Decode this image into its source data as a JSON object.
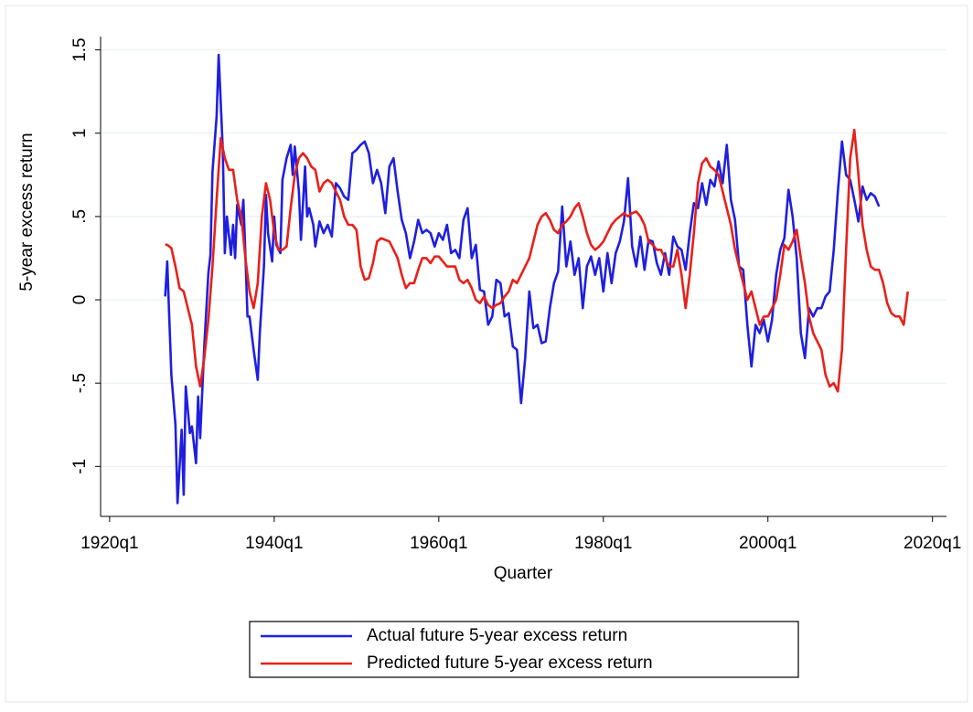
{
  "chart_data": {
    "type": "line",
    "x_label": "Quarter",
    "y_label": "5-year excess return",
    "xlim": [
      1918.9,
      2021.7
    ],
    "ylim": [
      -1.3,
      1.58
    ],
    "xticks": [
      {
        "value": 1920,
        "label": "1920q1"
      },
      {
        "value": 1940,
        "label": "1940q1"
      },
      {
        "value": 1960,
        "label": "1960q1"
      },
      {
        "value": 1980,
        "label": "1980q1"
      },
      {
        "value": 2000,
        "label": "2000q1"
      },
      {
        "value": 2020,
        "label": "2020q1"
      }
    ],
    "yticks": [
      -1,
      {
        "value": -0.5,
        "label": "-.5"
      },
      0,
      {
        "value": 0.5,
        "label": ".5"
      },
      1,
      1.5
    ],
    "grid": true,
    "legend": "bottom",
    "series": [
      {
        "name": "Actual future 5-year excess return",
        "color": "#1f1fe0",
        "x": [
          1926.75,
          1927,
          1927.5,
          1928,
          1928.25,
          1928.75,
          1929,
          1929.25,
          1929.75,
          1930,
          1930.5,
          1930.75,
          1931,
          1931.5,
          1932,
          1932.25,
          1932.5,
          1933,
          1933.25,
          1933.75,
          1934,
          1934.25,
          1934.75,
          1935,
          1935.25,
          1935.5,
          1936,
          1936.25,
          1936.5,
          1936.75,
          1937,
          1937.5,
          1938,
          1938.25,
          1938.75,
          1939,
          1939.25,
          1939.75,
          1940,
          1940.25,
          1940.75,
          1941,
          1941.5,
          1942,
          1942.25,
          1942.5,
          1943,
          1943.25,
          1943.75,
          1944,
          1944.25,
          1944.75,
          1945,
          1945.5,
          1946,
          1946.5,
          1947,
          1947.5,
          1948,
          1948.5,
          1949,
          1949.5,
          1950,
          1950.5,
          1951,
          1951.5,
          1952,
          1952.5,
          1953,
          1953.5,
          1954,
          1954.5,
          1955,
          1955.5,
          1956,
          1956.5,
          1957,
          1957.5,
          1958,
          1958.5,
          1959,
          1959.5,
          1960,
          1960.5,
          1961,
          1961.5,
          1962,
          1962.5,
          1963,
          1963.5,
          1964,
          1964.5,
          1965,
          1965.5,
          1966,
          1966.5,
          1967,
          1967.5,
          1968,
          1968.5,
          1969,
          1969.5,
          1970,
          1970.5,
          1971,
          1971.5,
          1972,
          1972.5,
          1973,
          1973.5,
          1974,
          1974.5,
          1975,
          1975.5,
          1976,
          1976.5,
          1977,
          1977.5,
          1978,
          1978.5,
          1979,
          1979.5,
          1980,
          1980.5,
          1981,
          1981.5,
          1982,
          1982.5,
          1983,
          1983.5,
          1984,
          1984.5,
          1985,
          1985.5,
          1986,
          1986.5,
          1987,
          1987.5,
          1988,
          1988.5,
          1989,
          1989.5,
          1990,
          1990.5,
          1991,
          1991.5,
          1992,
          1992.5,
          1993,
          1993.5,
          1994,
          1994.5,
          1995,
          1995.5,
          1996,
          1996.5,
          1997,
          1997.5,
          1998,
          1998.5,
          1999,
          1999.5,
          2000,
          2000.5,
          2001,
          2001.5,
          2002,
          2002.5,
          2003,
          2003.5,
          2004,
          2004.5,
          2005,
          2005.5,
          2006,
          2006.5,
          2007,
          2007.5,
          2008,
          2008.5,
          2009,
          2009.5,
          2010,
          2010.5,
          2011,
          2011.5,
          2012,
          2012.5,
          2013,
          2013.5
        ],
        "values": [
          0.02,
          0.23,
          -0.45,
          -0.75,
          -1.22,
          -0.78,
          -1.17,
          -0.52,
          -0.8,
          -0.76,
          -0.98,
          -0.58,
          -0.83,
          -0.28,
          0.16,
          0.27,
          0.77,
          1.1,
          1.47,
          0.9,
          0.28,
          0.5,
          0.27,
          0.45,
          0.25,
          0.57,
          0.45,
          0.6,
          0.27,
          -0.1,
          -0.1,
          -0.3,
          -0.48,
          -0.2,
          0.2,
          0.63,
          0.4,
          0.23,
          0.5,
          0.33,
          0.28,
          0.72,
          0.85,
          0.93,
          0.75,
          0.92,
          0.65,
          0.36,
          0.8,
          0.5,
          0.55,
          0.45,
          0.32,
          0.47,
          0.4,
          0.45,
          0.38,
          0.7,
          0.67,
          0.62,
          0.6,
          0.88,
          0.9,
          0.93,
          0.95,
          0.88,
          0.7,
          0.78,
          0.7,
          0.52,
          0.8,
          0.85,
          0.65,
          0.48,
          0.4,
          0.25,
          0.35,
          0.48,
          0.4,
          0.42,
          0.4,
          0.32,
          0.4,
          0.36,
          0.45,
          0.28,
          0.3,
          0.25,
          0.48,
          0.55,
          0.25,
          0.33,
          0.06,
          0.05,
          -0.15,
          -0.1,
          0.12,
          0.1,
          -0.1,
          -0.08,
          -0.28,
          -0.3,
          -0.62,
          -0.35,
          0.05,
          -0.17,
          -0.15,
          -0.26,
          -0.25,
          -0.05,
          0.1,
          0.17,
          0.56,
          0.2,
          0.35,
          0.15,
          0.25,
          -0.05,
          0.2,
          0.26,
          0.15,
          0.25,
          0.05,
          0.28,
          0.1,
          0.28,
          0.35,
          0.47,
          0.73,
          0.32,
          0.2,
          0.38,
          0.18,
          0.36,
          0.35,
          0.22,
          0.15,
          0.28,
          0.15,
          0.38,
          0.32,
          0.3,
          0.18,
          0.4,
          0.58,
          0.55,
          0.7,
          0.57,
          0.72,
          0.68,
          0.83,
          0.7,
          0.93,
          0.6,
          0.48,
          0.2,
          0.18,
          -0.15,
          -0.4,
          -0.15,
          -0.2,
          -0.12,
          -0.25,
          -0.12,
          0.15,
          0.3,
          0.37,
          0.66,
          0.5,
          0.25,
          -0.2,
          -0.35,
          -0.05,
          -0.1,
          -0.05,
          -0.05,
          0.02,
          0.05,
          0.3,
          0.65,
          0.95,
          0.75,
          0.72,
          0.6,
          0.47,
          0.68,
          0.6,
          0.64,
          0.62,
          0.56
        ]
      },
      {
        "name": "Predicted future 5-year excess return",
        "color": "#e8201a",
        "x": [
          1926.75,
          1927,
          1927.5,
          1928,
          1928.5,
          1929,
          1929.5,
          1930,
          1930.5,
          1931,
          1931.5,
          1932,
          1932.5,
          1933,
          1933.5,
          1934,
          1934.5,
          1935,
          1935.5,
          1936,
          1936.5,
          1937,
          1937.5,
          1938,
          1938.5,
          1939,
          1939.5,
          1940,
          1940.5,
          1941,
          1941.5,
          1942,
          1942.5,
          1943,
          1943.5,
          1944,
          1944.5,
          1945,
          1945.5,
          1946,
          1946.5,
          1947,
          1947.5,
          1948,
          1948.5,
          1949,
          1949.5,
          1950,
          1950.5,
          1951,
          1951.5,
          1952,
          1952.5,
          1953,
          1953.5,
          1954,
          1954.5,
          1955,
          1955.5,
          1956,
          1956.5,
          1957,
          1957.5,
          1958,
          1958.5,
          1959,
          1959.5,
          1960,
          1960.5,
          1961,
          1961.5,
          1962,
          1962.5,
          1963,
          1963.5,
          1964,
          1964.5,
          1965,
          1965.5,
          1966,
          1966.5,
          1967,
          1967.5,
          1968,
          1968.5,
          1969,
          1969.5,
          1970,
          1970.5,
          1971,
          1971.5,
          1972,
          1972.5,
          1973,
          1973.5,
          1974,
          1974.5,
          1975,
          1975.5,
          1976,
          1976.5,
          1977,
          1977.5,
          1978,
          1978.5,
          1979,
          1979.5,
          1980,
          1980.5,
          1981,
          1981.5,
          1982,
          1982.5,
          1983,
          1983.5,
          1984,
          1984.5,
          1985,
          1985.5,
          1986,
          1986.5,
          1987,
          1987.5,
          1988,
          1988.5,
          1989,
          1989.5,
          1990,
          1990.5,
          1991,
          1991.5,
          1992,
          1992.5,
          1993,
          1993.5,
          1994,
          1994.5,
          1995,
          1995.5,
          1996,
          1996.5,
          1997,
          1997.5,
          1998,
          1998.5,
          1999,
          1999.5,
          2000,
          2000.5,
          2001,
          2001.5,
          2002,
          2002.5,
          2003,
          2003.5,
          2004,
          2004.5,
          2005,
          2005.5,
          2006,
          2006.5,
          2007,
          2007.5,
          2008,
          2008.5,
          2009,
          2009.5,
          2010,
          2010.5,
          2011,
          2011.5,
          2012,
          2012.5,
          2013,
          2013.5,
          2014,
          2014.5,
          2015,
          2015.5,
          2016,
          2016.5,
          2017
        ],
        "values": [
          0.33,
          0.33,
          0.31,
          0.2,
          0.07,
          0.05,
          -0.05,
          -0.15,
          -0.4,
          -0.52,
          -0.35,
          -0.12,
          0.2,
          0.6,
          0.97,
          0.85,
          0.78,
          0.78,
          0.6,
          0.5,
          0.25,
          0.05,
          -0.05,
          0.1,
          0.5,
          0.7,
          0.6,
          0.4,
          0.3,
          0.3,
          0.32,
          0.55,
          0.75,
          0.85,
          0.88,
          0.85,
          0.8,
          0.78,
          0.65,
          0.7,
          0.72,
          0.7,
          0.65,
          0.6,
          0.5,
          0.45,
          0.45,
          0.42,
          0.2,
          0.12,
          0.13,
          0.22,
          0.35,
          0.37,
          0.36,
          0.35,
          0.3,
          0.25,
          0.15,
          0.07,
          0.1,
          0.1,
          0.18,
          0.25,
          0.25,
          0.22,
          0.26,
          0.26,
          0.23,
          0.2,
          0.2,
          0.2,
          0.12,
          0.1,
          0.12,
          0.07,
          0.0,
          -0.02,
          0.02,
          -0.03,
          -0.05,
          -0.03,
          -0.02,
          0.02,
          0.05,
          0.12,
          0.1,
          0.15,
          0.2,
          0.25,
          0.35,
          0.45,
          0.5,
          0.52,
          0.48,
          0.42,
          0.4,
          0.45,
          0.47,
          0.5,
          0.55,
          0.58,
          0.5,
          0.4,
          0.33,
          0.3,
          0.32,
          0.35,
          0.4,
          0.45,
          0.48,
          0.5,
          0.52,
          0.5,
          0.52,
          0.53,
          0.5,
          0.45,
          0.35,
          0.33,
          0.3,
          0.3,
          0.25,
          0.2,
          0.2,
          0.3,
          0.15,
          -0.05,
          0.15,
          0.4,
          0.7,
          0.82,
          0.85,
          0.8,
          0.78,
          0.75,
          0.65,
          0.55,
          0.45,
          0.3,
          0.2,
          0.1,
          0.0,
          0.05,
          -0.05,
          -0.15,
          -0.1,
          -0.1,
          -0.05,
          0.0,
          0.15,
          0.33,
          0.3,
          0.35,
          0.42,
          0.25,
          0.1,
          -0.1,
          -0.2,
          -0.25,
          -0.3,
          -0.45,
          -0.52,
          -0.5,
          -0.55,
          -0.3,
          0.3,
          0.85,
          1.02,
          0.75,
          0.45,
          0.3,
          0.2,
          0.18,
          0.18,
          0.1,
          -0.02,
          -0.08,
          -0.1,
          -0.1,
          -0.15,
          0.05
        ]
      }
    ]
  }
}
